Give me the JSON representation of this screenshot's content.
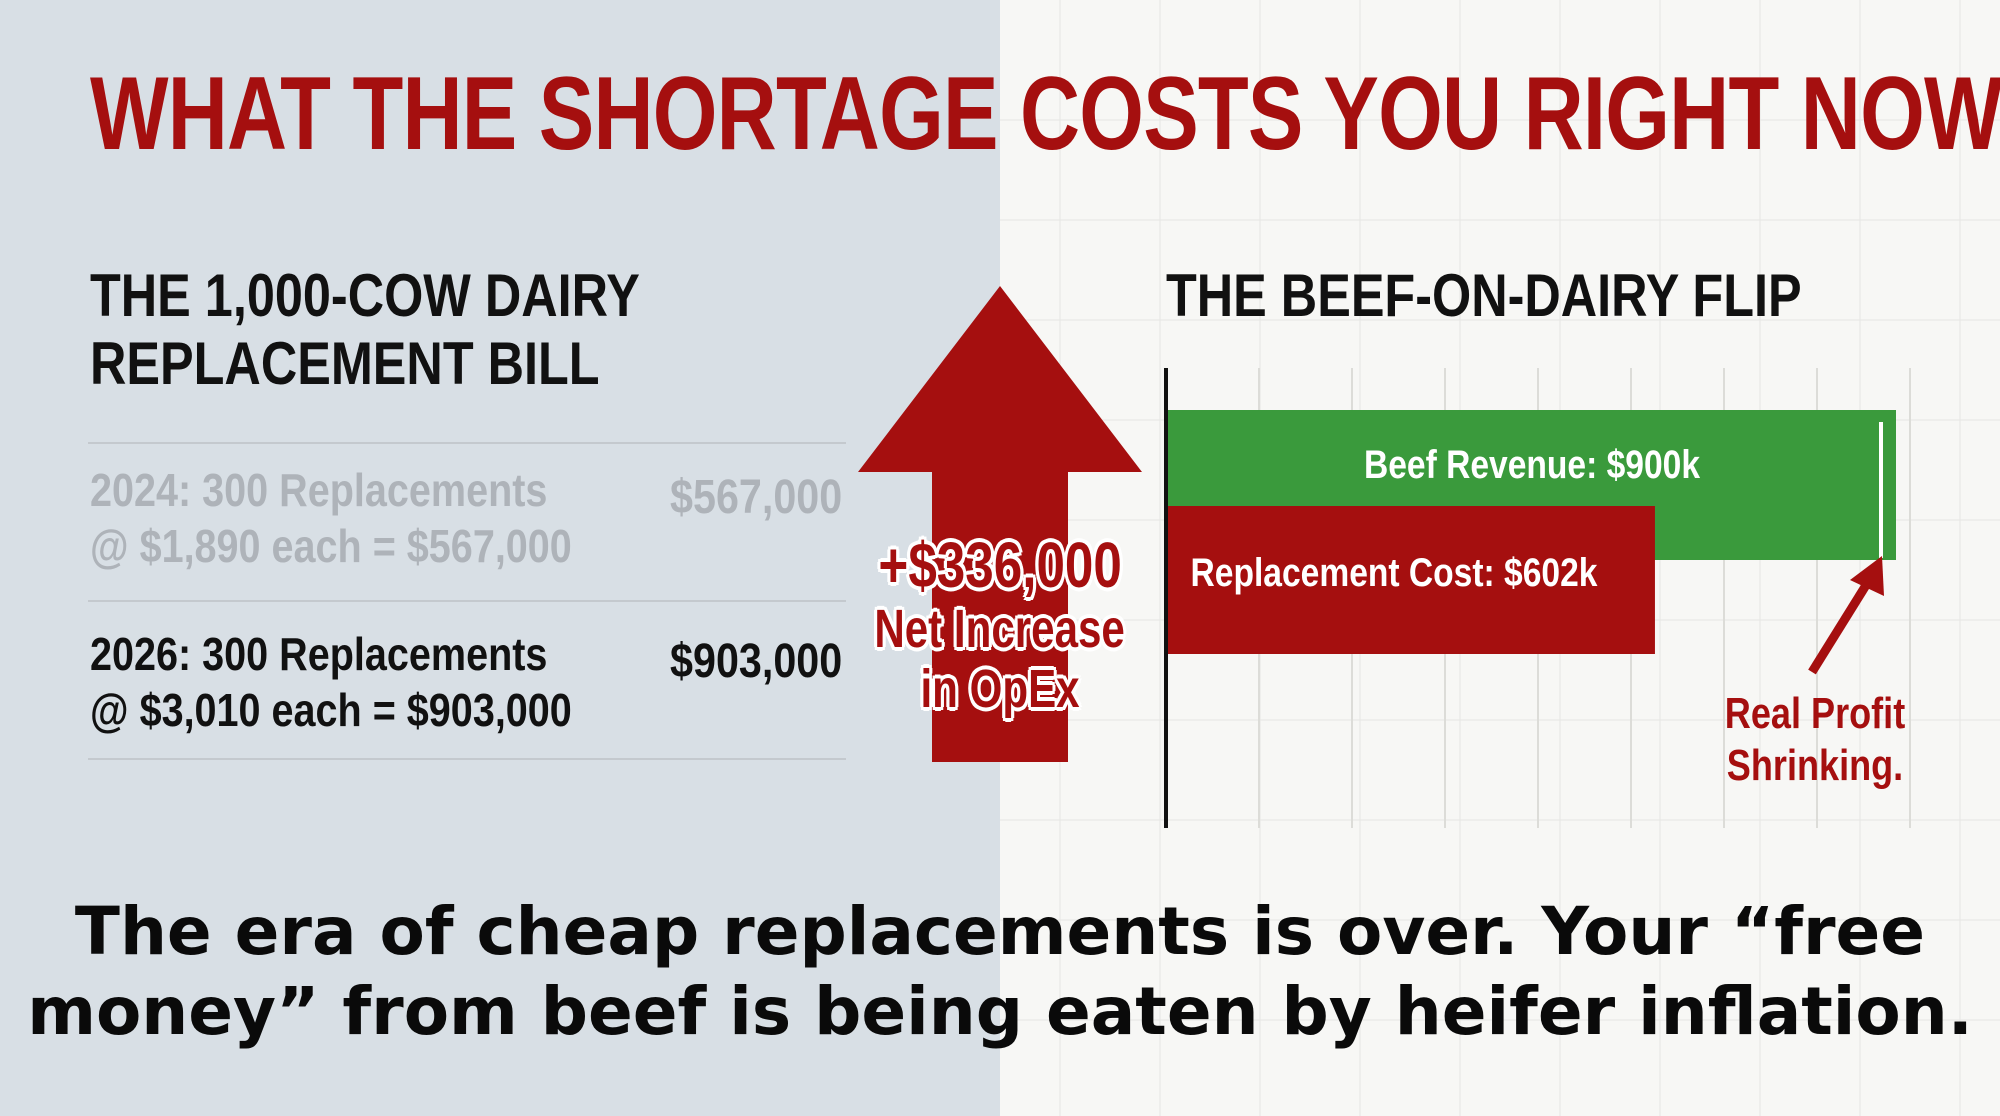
{
  "title": "WHAT THE SHORTAGE COSTS YOU RIGHT NOW",
  "left_panel": {
    "heading_line1": "THE 1,000-COW DAIRY",
    "heading_line2": "REPLACEMENT BILL",
    "rows": [
      {
        "line1": "2024: 300 Replacements",
        "line2": "@ $1,890 each = $567,000",
        "amount": "$567,000"
      },
      {
        "line1": "2026: 300 Replacements",
        "line2": "@ $3,010 each = $903,000",
        "amount": "$903,000"
      }
    ]
  },
  "arrow_callout": {
    "amount": "+$336,000",
    "line2": "Net Increase",
    "line3": "in OpEx"
  },
  "right_panel": {
    "heading": "THE BEEF-ON-DAIRY FLIP",
    "note_line1": "Real Profit",
    "note_line2": "Shrinking."
  },
  "chart_data": {
    "type": "bar",
    "orientation": "horizontal",
    "categories": [
      "Beef Revenue",
      "Replacement Cost"
    ],
    "values": [
      900,
      602
    ],
    "unit": "$k",
    "labels": [
      "Beef Revenue: $900k",
      "Replacement Cost: $602k"
    ],
    "colors": [
      "#3a9a3c",
      "#a50f0f"
    ],
    "xlim": [
      0,
      900
    ],
    "grid": true
  },
  "footer": {
    "line1": "The era of cheap replacements is over. Your “free",
    "line2": "money” from beef is being eaten by heifer inflation."
  },
  "colors": {
    "accent_red": "#a50f0f",
    "green": "#3a9a3c",
    "left_bg": "#d8dfe5",
    "right_bg": "#f7f7f5"
  }
}
